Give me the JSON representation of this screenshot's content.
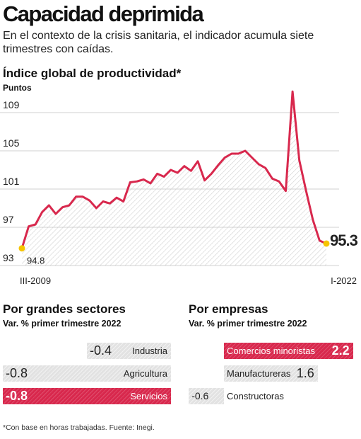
{
  "header": {
    "title": "Capacidad deprimida",
    "subtitle": "En el contexto de la crisis sanitaria, el indicador acumula siete trimestres con caídas."
  },
  "chart_data": [
    {
      "type": "area",
      "title": "Índice global de productividad*",
      "ylabel": "Puntos",
      "ylim": [
        93,
        111
      ],
      "yticks": [
        93,
        97,
        101,
        105,
        109
      ],
      "x_labels": [
        "III-2009",
        "I-2022"
      ],
      "start_label": "94.8",
      "end_label": "95.3",
      "line_color": "#d8284d",
      "marker_color": "#f5c400",
      "series": [
        {
          "values": [
            94.8,
            97.1,
            97.3,
            98.6,
            99.3,
            98.4,
            99.1,
            99.3,
            100.2,
            100.2,
            99.8,
            99.0,
            99.7,
            99.5,
            100.1,
            99.7,
            101.7,
            101.8,
            102.0,
            101.6,
            102.6,
            102.3,
            103.0,
            102.7,
            103.4,
            102.9,
            103.9,
            101.9,
            102.6,
            103.5,
            104.3,
            104.7,
            104.7,
            105.0,
            104.3,
            103.6,
            103.2,
            102.1,
            101.8,
            100.8,
            111.2,
            104.0,
            100.8,
            97.8,
            95.6,
            95.3
          ]
        }
      ]
    },
    {
      "type": "bar",
      "title": "Por grandes sectores",
      "subtitle": "Var. % primer trimestre 2022",
      "categories": [
        "Industria",
        "Agricultura",
        "Servicios"
      ],
      "values": [
        -0.4,
        -0.8,
        -0.8
      ],
      "labels": [
        "-0.4",
        "-0.8",
        "-0.8"
      ],
      "highlight": "Servicios"
    },
    {
      "type": "bar",
      "title": "Por empresas",
      "subtitle": "Var. % primer trimestre 2022",
      "categories": [
        "Comercios minoristas",
        "Manufactureras",
        "Constructoras"
      ],
      "values": [
        2.2,
        1.6,
        -0.6
      ],
      "labels": [
        "2.2",
        "1.6",
        "-0.6"
      ],
      "highlight": "Comercios minoristas"
    }
  ],
  "footnote": "*Con base en horas trabajadas. Fuente: Inegi."
}
